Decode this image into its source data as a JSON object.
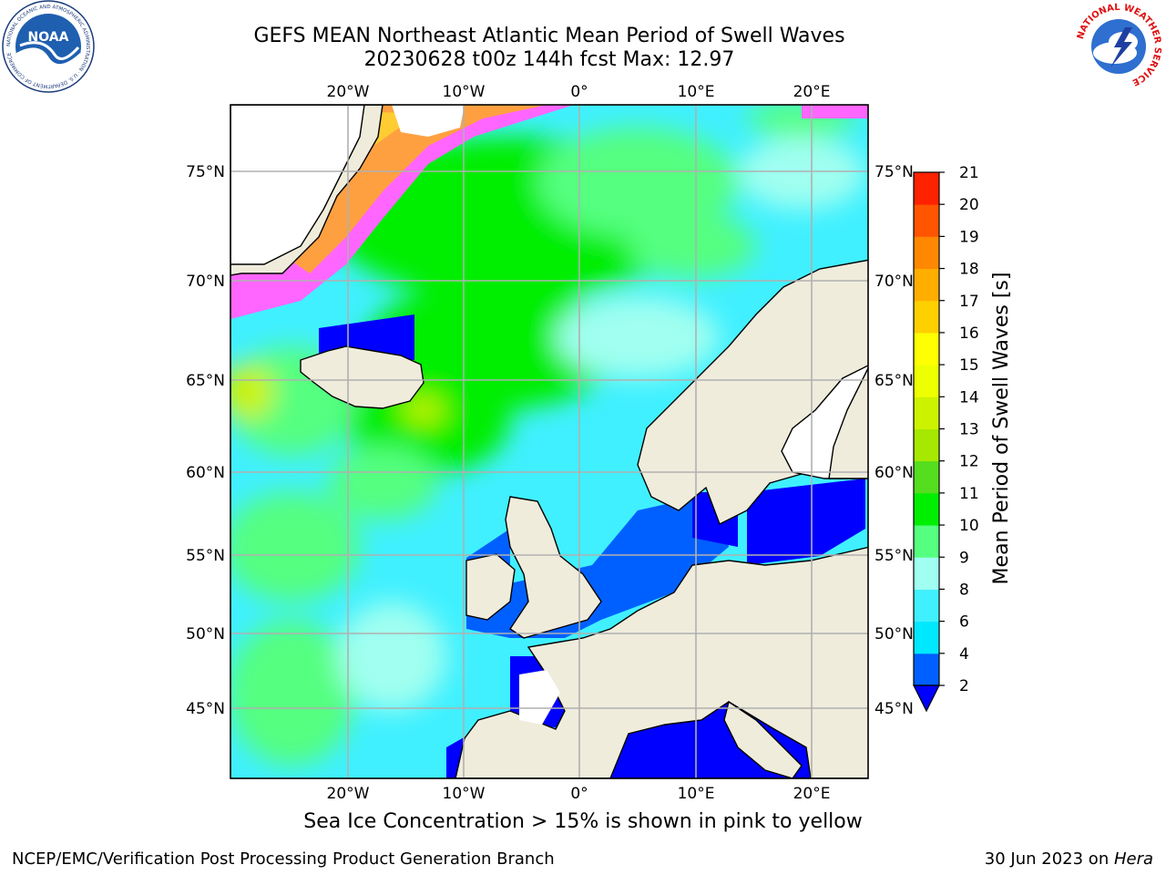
{
  "title": {
    "line1": "GEFS MEAN Northeast Atlantic Mean Period of Swell Waves",
    "line2": "20230628 t00z 144h fcst   Max: 12.97"
  },
  "map": {
    "lon_labels": [
      "20°W",
      "10°W",
      "0°",
      "10°E",
      "20°E"
    ],
    "lat_labels": [
      "75°N",
      "70°N",
      "65°N",
      "60°N",
      "55°N",
      "50°N",
      "45°N"
    ],
    "gridlines": true,
    "land_color": "#efecdc",
    "ice_color": "#ffffff"
  },
  "colorbar": {
    "label": "Mean Period of Swell Waves [s]",
    "ticks": [
      "2",
      "4",
      "6",
      "8",
      "9",
      "10",
      "11",
      "12",
      "13",
      "14",
      "15",
      "16",
      "17",
      "18",
      "19",
      "20",
      "21"
    ],
    "colors": [
      "#0060ff",
      "#00e8ff",
      "#40f0ff",
      "#a0fff0",
      "#55ff80",
      "#00ee00",
      "#55dd20",
      "#a6e800",
      "#cdf200",
      "#eeff00",
      "#ffff00",
      "#ffd000",
      "#ffae00",
      "#ff8800",
      "#ff5500",
      "#ff2200"
    ],
    "under_color": "#0000ff"
  },
  "logos": {
    "noaa_text": "NOAA",
    "noaa_ring_text": "NATIONAL OCEANIC AND ATMOSPHERIC ADMINISTRATION · U.S. DEPARTMENT OF COMMERCE",
    "nws_ring_text": "NATIONAL WEATHER SERVICE"
  },
  "footer": {
    "sea_ice_note": "Sea Ice Concentration > 15% is shown in pink to yellow",
    "credit_left": "NCEP/EMC/Verification Post Processing Product Generation Branch",
    "credit_date": "30 Jun 2023 on ",
    "credit_host": "Hera"
  }
}
